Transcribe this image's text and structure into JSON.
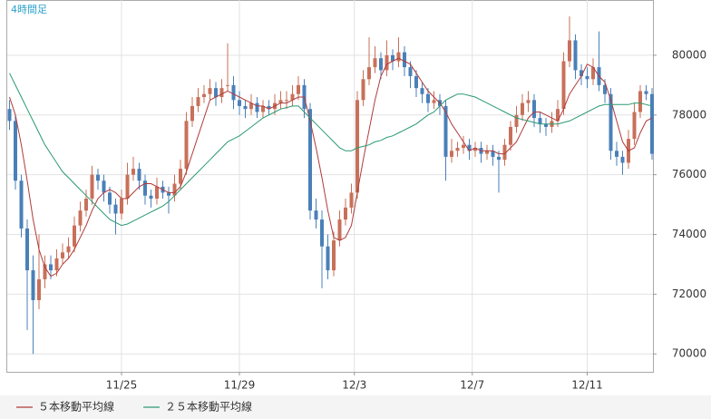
{
  "chart_data": {
    "type": "candlestick",
    "label": "4時間足",
    "up_color": "#c8705a",
    "down_color": "#4a80b8",
    "ohlc": [
      [
        78200,
        78500,
        77500,
        77800
      ],
      [
        77800,
        78000,
        75500,
        75800
      ],
      [
        75800,
        76000,
        73900,
        74200
      ],
      [
        74200,
        74500,
        70800,
        72800
      ],
      [
        72800,
        73300,
        70000,
        71800
      ],
      [
        71800,
        74000,
        71500,
        72500
      ],
      [
        72500,
        73300,
        72200,
        73000
      ],
      [
        73000,
        73300,
        72500,
        72800
      ],
      [
        72800,
        73500,
        72600,
        73200
      ],
      [
        73200,
        73700,
        73000,
        73400
      ],
      [
        73400,
        73900,
        73200,
        73600
      ],
      [
        73600,
        74600,
        73400,
        74300
      ],
      [
        74300,
        75100,
        74100,
        74800
      ],
      [
        74800,
        75500,
        74600,
        75200
      ],
      [
        75200,
        76300,
        75000,
        76000
      ],
      [
        76000,
        76200,
        75500,
        75800
      ],
      [
        75800,
        76000,
        75100,
        75400
      ],
      [
        75400,
        75600,
        74700,
        75000
      ],
      [
        75000,
        75200,
        74000,
        74700
      ],
      [
        74700,
        75500,
        74500,
        75200
      ],
      [
        75200,
        76400,
        75000,
        76000
      ],
      [
        76000,
        76600,
        75800,
        76200
      ],
      [
        76200,
        76400,
        75500,
        75800
      ],
      [
        75800,
        76000,
        75000,
        75300
      ],
      [
        75300,
        75500,
        74900,
        75200
      ],
      [
        75200,
        75900,
        75000,
        75600
      ],
      [
        75600,
        75800,
        75200,
        75400
      ],
      [
        75400,
        75600,
        74700,
        75300
      ],
      [
        75300,
        76000,
        75100,
        75700
      ],
      [
        75700,
        76500,
        75500,
        76200
      ],
      [
        76200,
        78100,
        76000,
        77800
      ],
      [
        77800,
        78600,
        77600,
        78300
      ],
      [
        78300,
        78900,
        78100,
        78600
      ],
      [
        78600,
        79000,
        78400,
        78700
      ],
      [
        78700,
        79200,
        78500,
        78900
      ],
      [
        78900,
        79100,
        78300,
        78600
      ],
      [
        78600,
        79200,
        78400,
        78900
      ],
      [
        79000,
        80400,
        78800,
        79000
      ],
      [
        79000,
        79300,
        78200,
        78500
      ],
      [
        78500,
        78800,
        78000,
        78300
      ],
      [
        78300,
        78500,
        77900,
        78200
      ],
      [
        78200,
        78700,
        78000,
        78400
      ],
      [
        78400,
        78600,
        77900,
        78100
      ],
      [
        78100,
        78500,
        77900,
        78300
      ],
      [
        78300,
        78500,
        78000,
        78200
      ],
      [
        78200,
        78700,
        78000,
        78400
      ],
      [
        78400,
        78800,
        78200,
        78500
      ],
      [
        78500,
        78800,
        78200,
        78500
      ],
      [
        78500,
        79000,
        78300,
        78700
      ],
      [
        78700,
        79300,
        78500,
        79000
      ],
      [
        79000,
        79200,
        77900,
        78200
      ],
      [
        78200,
        78400,
        74500,
        74800
      ],
      [
        74800,
        75200,
        74200,
        74500
      ],
      [
        74500,
        74800,
        72200,
        73600
      ],
      [
        73600,
        74000,
        72500,
        72800
      ],
      [
        72800,
        74100,
        72600,
        73800
      ],
      [
        73800,
        74800,
        73600,
        74500
      ],
      [
        74500,
        75200,
        74300,
        74900
      ],
      [
        74900,
        75700,
        74700,
        75400
      ],
      [
        75400,
        78800,
        75200,
        78500
      ],
      [
        78500,
        79500,
        78300,
        79200
      ],
      [
        79200,
        80600,
        79000,
        79600
      ],
      [
        79600,
        80300,
        79400,
        79900
      ],
      [
        79900,
        80100,
        79200,
        79500
      ],
      [
        79500,
        80500,
        79300,
        80000
      ],
      [
        80000,
        80200,
        79500,
        79800
      ],
      [
        79800,
        80600,
        79600,
        80100
      ],
      [
        80100,
        80300,
        79300,
        79600
      ],
      [
        79600,
        79800,
        78900,
        79300
      ],
      [
        79300,
        79500,
        78600,
        78900
      ],
      [
        78900,
        79100,
        78400,
        78700
      ],
      [
        78700,
        78900,
        78100,
        78400
      ],
      [
        78400,
        78800,
        78200,
        78500
      ],
      [
        78500,
        78700,
        78000,
        78300
      ],
      [
        78300,
        78500,
        75800,
        76600
      ],
      [
        76600,
        77200,
        76400,
        76800
      ],
      [
        76800,
        77100,
        76600,
        76900
      ],
      [
        76900,
        77300,
        76700,
        77000
      ],
      [
        77000,
        77200,
        76500,
        76800
      ],
      [
        76800,
        77100,
        76600,
        76900
      ],
      [
        76900,
        77100,
        76400,
        76700
      ],
      [
        76700,
        77000,
        76500,
        76800
      ],
      [
        76800,
        77000,
        76300,
        76600
      ],
      [
        76600,
        76800,
        75400,
        76500
      ],
      [
        76500,
        77200,
        76300,
        77000
      ],
      [
        77000,
        77800,
        76800,
        77600
      ],
      [
        77600,
        78300,
        77400,
        78000
      ],
      [
        78000,
        78700,
        77800,
        78400
      ],
      [
        78400,
        78800,
        78100,
        78500
      ],
      [
        78500,
        78700,
        77600,
        77900
      ],
      [
        77900,
        78100,
        77400,
        77700
      ],
      [
        77700,
        77900,
        77300,
        77600
      ],
      [
        77600,
        78100,
        77400,
        77800
      ],
      [
        77800,
        78500,
        77600,
        78200
      ],
      [
        78200,
        80100,
        78000,
        79800
      ],
      [
        79800,
        81300,
        79600,
        80500
      ],
      [
        80500,
        80700,
        79200,
        79500
      ],
      [
        79500,
        79700,
        79000,
        79300
      ],
      [
        79300,
        79600,
        78900,
        79200
      ],
      [
        79200,
        79900,
        79000,
        79600
      ],
      [
        79600,
        80800,
        78800,
        79000
      ],
      [
        79000,
        79200,
        78400,
        78700
      ],
      [
        78700,
        78900,
        76500,
        76800
      ],
      [
        76800,
        77100,
        76300,
        76600
      ],
      [
        76600,
        76800,
        76000,
        76400
      ],
      [
        76400,
        77500,
        76200,
        77200
      ],
      [
        77200,
        78400,
        77000,
        78100
      ],
      [
        78100,
        79000,
        77900,
        78800
      ],
      [
        78800,
        79000,
        78500,
        78700
      ],
      [
        78700,
        78900,
        76500,
        76700
      ]
    ],
    "series": [
      {
        "name": "５本移動平均線",
        "color": "#b03a3a",
        "values": [
          78600,
          78000,
          77000,
          75800,
          74500,
          73500,
          72900,
          72600,
          72700,
          73000,
          73200,
          73500,
          73900,
          74300,
          74800,
          75200,
          75400,
          75500,
          75400,
          75200,
          75200,
          75400,
          75600,
          75700,
          75700,
          75600,
          75500,
          75400,
          75400,
          75600,
          76100,
          76700,
          77300,
          77900,
          78500,
          78600,
          78700,
          78800,
          78700,
          78600,
          78500,
          78400,
          78300,
          78300,
          78200,
          78300,
          78400,
          78400,
          78500,
          78600,
          78600,
          77800,
          76900,
          75900,
          74800,
          73900,
          73800,
          73900,
          74300,
          75400,
          76500,
          77500,
          78500,
          79300,
          79700,
          79800,
          79900,
          79800,
          79700,
          79400,
          79100,
          78800,
          78600,
          78400,
          78100,
          77700,
          77400,
          77100,
          76800,
          76900,
          76800,
          76800,
          76800,
          76700,
          76700,
          76900,
          77100,
          77500,
          77900,
          78100,
          78100,
          78000,
          77900,
          77800,
          78200,
          78700,
          79000,
          79300,
          79700,
          79600,
          79300,
          79100,
          78500,
          77800,
          77100,
          76800,
          76900,
          77400,
          77800,
          77900
        ]
      },
      {
        "name": "２５本移動平均線",
        "color": "#2a9a70",
        "values": [
          79400,
          79000,
          78600,
          78200,
          77800,
          77400,
          77000,
          76700,
          76400,
          76100,
          75900,
          75700,
          75500,
          75300,
          75100,
          74900,
          74700,
          74500,
          74400,
          74300,
          74350,
          74450,
          74550,
          74650,
          74750,
          74850,
          74950,
          75100,
          75300,
          75500,
          75700,
          75900,
          76100,
          76300,
          76500,
          76700,
          76900,
          77100,
          77200,
          77300,
          77450,
          77600,
          77750,
          77900,
          78000,
          78100,
          78200,
          78250,
          78300,
          78300,
          78100,
          77900,
          77700,
          77500,
          77300,
          77100,
          76900,
          76800,
          76800,
          76900,
          76950,
          77000,
          77100,
          77150,
          77250,
          77300,
          77400,
          77500,
          77600,
          77700,
          77850,
          78000,
          78100,
          78300,
          78500,
          78600,
          78700,
          78700,
          78650,
          78600,
          78500,
          78400,
          78300,
          78200,
          78100,
          78000,
          77900,
          77850,
          77800,
          77750,
          77700,
          77700,
          77700,
          77700,
          77750,
          77800,
          77900,
          78000,
          78100,
          78200,
          78300,
          78350,
          78350,
          78350,
          78350,
          78350,
          78400,
          78400,
          78350,
          78300
        ]
      }
    ],
    "ylim": [
      69400,
      81850
    ],
    "yticks": [
      70000,
      72000,
      74000,
      76000,
      78000,
      80000
    ],
    "xticks": [
      {
        "value": 19,
        "label": "11/25"
      },
      {
        "value": 39,
        "label": "11/29"
      },
      {
        "value": 58.5,
        "label": "12/3"
      },
      {
        "value": 78.5,
        "label": "12/7"
      },
      {
        "value": 98,
        "label": "12/11"
      }
    ],
    "grid": true
  }
}
